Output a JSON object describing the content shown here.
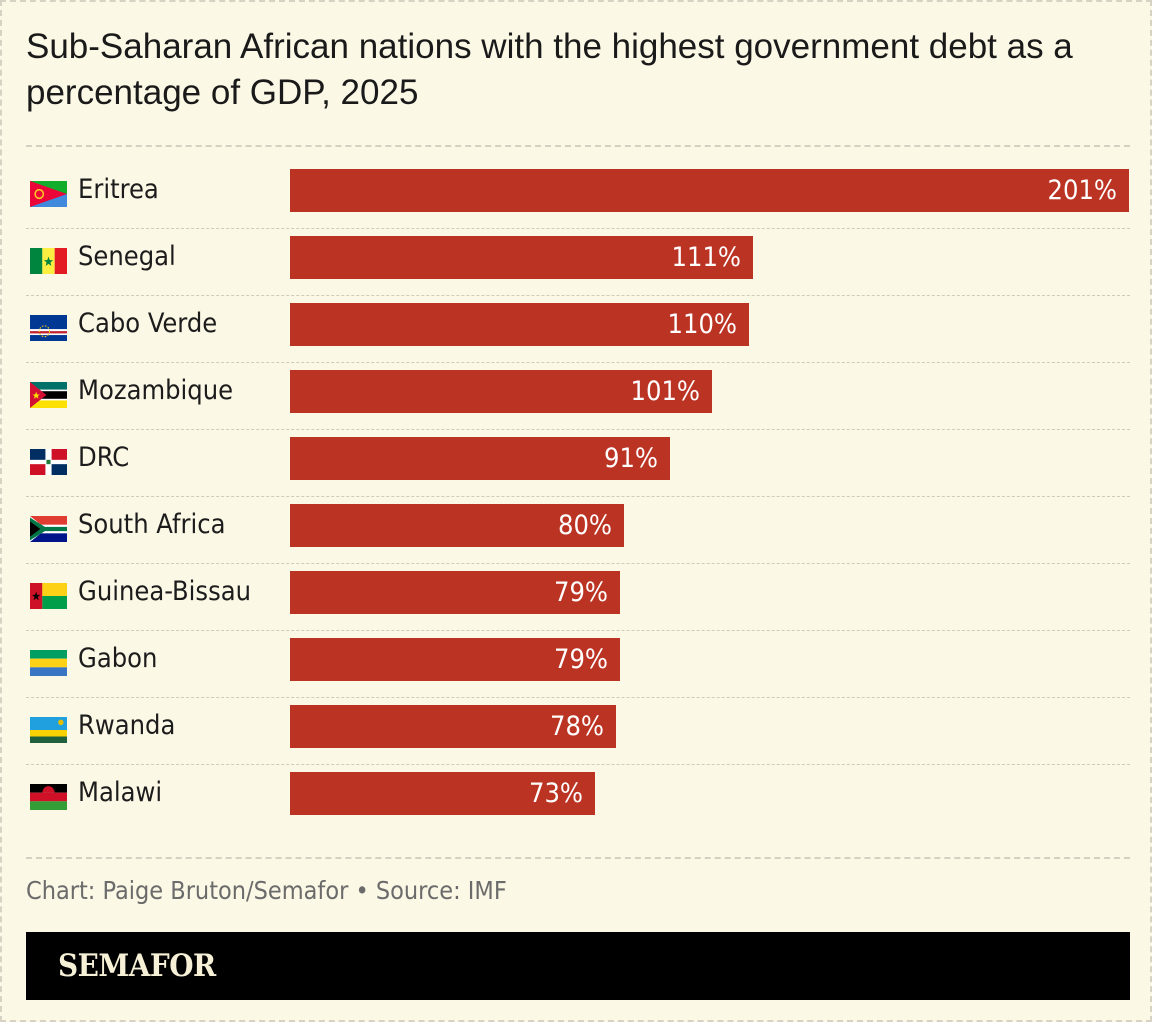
{
  "title": "Sub-Saharan African nations with the highest government debt as a percentage of GDP, 2025",
  "credit": "Chart: Paige Bruton/Semafor • Source: IMF",
  "brand": "SEMAFOR",
  "colors": {
    "bar": "#bb3322",
    "background": "#fcf8e6",
    "brand_bar": "#000000",
    "brand_text": "#f6f0d6"
  },
  "chart_data": {
    "type": "bar",
    "orientation": "horizontal",
    "title": "Sub-Saharan African nations with the highest government debt as a percentage of GDP, 2025",
    "categories": [
      "Eritrea",
      "Senegal",
      "Cabo Verde",
      "Mozambique",
      "DRC",
      "South Africa",
      "Guinea-Bissau",
      "Gabon",
      "Rwanda",
      "Malawi"
    ],
    "values": [
      201,
      111,
      110,
      101,
      91,
      80,
      79,
      79,
      78,
      73
    ],
    "value_labels": [
      "201%",
      "111%",
      "110%",
      "101%",
      "91%",
      "80%",
      "79%",
      "79%",
      "78%",
      "73%"
    ],
    "flags": [
      "eritrea-flag-icon",
      "senegal-flag-icon",
      "cabo-verde-flag-icon",
      "mozambique-flag-icon",
      "drc-flag-icon",
      "south-africa-flag-icon",
      "guinea-bissau-flag-icon",
      "gabon-flag-icon",
      "rwanda-flag-icon",
      "malawi-flag-icon"
    ],
    "unit": "%",
    "xlim": [
      0,
      201
    ],
    "grid": false,
    "legend": "none"
  }
}
